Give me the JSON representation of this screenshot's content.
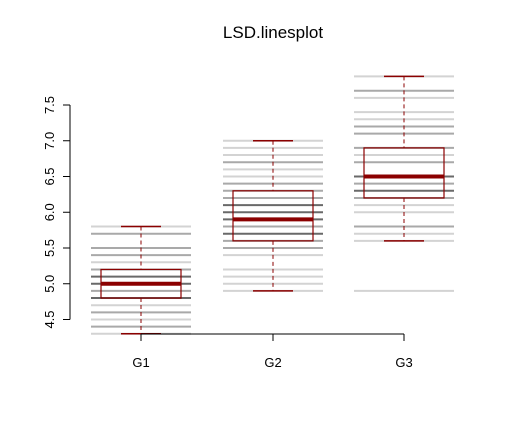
{
  "chart_data": {
    "type": "boxplot",
    "title": "LSD.linesplot",
    "xlabel": "",
    "ylabel": "",
    "categories": [
      "G1",
      "G2",
      "G3"
    ],
    "ylim": [
      4.3,
      7.95
    ],
    "yticks": [
      "4.5",
      "5.0",
      "5.5",
      "6.0",
      "6.5",
      "7.0",
      "7.5"
    ],
    "grid": false,
    "colors": {
      "box": "#8B0000",
      "median": "#8B0000",
      "lines_light": "#d3d3d3",
      "lines_mid": "#a9a9a9",
      "lines_dark": "#696969"
    },
    "groups": [
      {
        "name": "G1",
        "whisker_low": 4.3,
        "q1": 4.8,
        "median": 5.0,
        "q3": 5.2,
        "whisker_high": 5.8,
        "lines": [
          {
            "y": 4.3,
            "shade": "light"
          },
          {
            "y": 4.4,
            "shade": "mid"
          },
          {
            "y": 4.5,
            "shade": "light"
          },
          {
            "y": 4.6,
            "shade": "mid"
          },
          {
            "y": 4.7,
            "shade": "light"
          },
          {
            "y": 4.8,
            "shade": "dark"
          },
          {
            "y": 4.9,
            "shade": "mid"
          },
          {
            "y": 5.0,
            "shade": "dark"
          },
          {
            "y": 5.1,
            "shade": "dark"
          },
          {
            "y": 5.2,
            "shade": "mid"
          },
          {
            "y": 5.3,
            "shade": "light"
          },
          {
            "y": 5.4,
            "shade": "mid"
          },
          {
            "y": 5.5,
            "shade": "mid"
          },
          {
            "y": 5.7,
            "shade": "mid"
          },
          {
            "y": 5.8,
            "shade": "light"
          }
        ]
      },
      {
        "name": "G2",
        "whisker_low": 4.9,
        "q1": 5.6,
        "median": 5.9,
        "q3": 6.3,
        "whisker_high": 7.0,
        "lines": [
          {
            "y": 4.9,
            "shade": "light"
          },
          {
            "y": 5.0,
            "shade": "light"
          },
          {
            "y": 5.1,
            "shade": "light"
          },
          {
            "y": 5.2,
            "shade": "light"
          },
          {
            "y": 5.4,
            "shade": "light"
          },
          {
            "y": 5.5,
            "shade": "mid"
          },
          {
            "y": 5.6,
            "shade": "mid"
          },
          {
            "y": 5.7,
            "shade": "dark"
          },
          {
            "y": 5.8,
            "shade": "mid"
          },
          {
            "y": 5.9,
            "shade": "dark"
          },
          {
            "y": 6.0,
            "shade": "dark"
          },
          {
            "y": 6.1,
            "shade": "dark"
          },
          {
            "y": 6.2,
            "shade": "mid"
          },
          {
            "y": 6.3,
            "shade": "mid"
          },
          {
            "y": 6.4,
            "shade": "mid"
          },
          {
            "y": 6.5,
            "shade": "light"
          },
          {
            "y": 6.6,
            "shade": "light"
          },
          {
            "y": 6.7,
            "shade": "mid"
          },
          {
            "y": 6.8,
            "shade": "light"
          },
          {
            "y": 6.9,
            "shade": "light"
          },
          {
            "y": 7.0,
            "shade": "light"
          }
        ]
      },
      {
        "name": "G3",
        "whisker_low": 5.6,
        "q1": 6.2,
        "median": 6.5,
        "q3": 6.9,
        "whisker_high": 7.9,
        "lines": [
          {
            "y": 4.9,
            "shade": "light"
          },
          {
            "y": 5.6,
            "shade": "light"
          },
          {
            "y": 5.7,
            "shade": "light"
          },
          {
            "y": 5.8,
            "shade": "mid"
          },
          {
            "y": 6.0,
            "shade": "light"
          },
          {
            "y": 6.1,
            "shade": "light"
          },
          {
            "y": 6.2,
            "shade": "mid"
          },
          {
            "y": 6.3,
            "shade": "dark"
          },
          {
            "y": 6.4,
            "shade": "mid"
          },
          {
            "y": 6.5,
            "shade": "dark"
          },
          {
            "y": 6.7,
            "shade": "mid"
          },
          {
            "y": 6.8,
            "shade": "light"
          },
          {
            "y": 6.9,
            "shade": "mid"
          },
          {
            "y": 7.1,
            "shade": "mid"
          },
          {
            "y": 7.2,
            "shade": "mid"
          },
          {
            "y": 7.3,
            "shade": "light"
          },
          {
            "y": 7.4,
            "shade": "light"
          },
          {
            "y": 7.6,
            "shade": "light"
          },
          {
            "y": 7.7,
            "shade": "mid"
          },
          {
            "y": 7.9,
            "shade": "light"
          }
        ]
      }
    ]
  }
}
